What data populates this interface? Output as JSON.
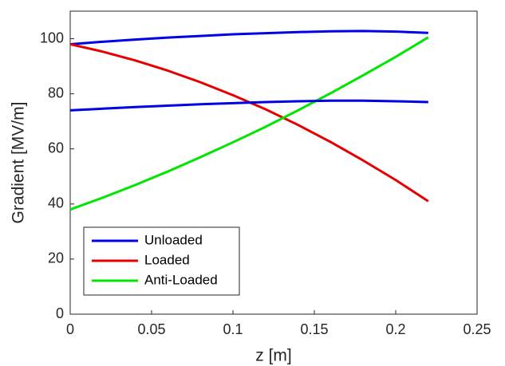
{
  "chart_data": {
    "type": "line",
    "x_label": "z [m]",
    "y_label": "Gradient [MV/m]",
    "x": [
      0,
      0.02,
      0.04,
      0.06,
      0.08,
      0.1,
      0.12,
      0.14,
      0.16,
      0.18,
      0.2,
      0.22
    ],
    "series": [
      {
        "name": "Unloaded",
        "color": "#0000e6",
        "values": [
          98,
          98.9,
          99.7,
          100.4,
          101.0,
          101.6,
          102.0,
          102.4,
          102.7,
          102.8,
          102.6,
          102.1
        ]
      },
      {
        "name": "Loaded",
        "color": "#e60000",
        "values": [
          98,
          95.3,
          92.1,
          88.4,
          84.2,
          79.5,
          74.4,
          68.7,
          62.5,
          55.8,
          48.7,
          41
        ]
      },
      {
        "name": "Anti-Loaded",
        "color": "#00e600",
        "values": [
          38,
          42.3,
          46.9,
          51.8,
          57.0,
          62.4,
          68.0,
          74.0,
          80.2,
          86.7,
          93.4,
          100.5
        ]
      },
      {
        "color": "#0000e6",
        "values": [
          74,
          74.6,
          75.2,
          75.7,
          76.2,
          76.6,
          77.0,
          77.3,
          77.5,
          77.5,
          77.3,
          77.0
        ]
      }
    ],
    "xlim": [
      0,
      0.25
    ],
    "xticks": [
      0,
      0.05,
      0.1,
      0.15,
      0.2,
      0.25
    ],
    "ylim": [
      0,
      110
    ],
    "yticks": [
      0,
      20,
      40,
      60,
      80,
      100
    ],
    "grid": false,
    "legend": "lower-left"
  }
}
